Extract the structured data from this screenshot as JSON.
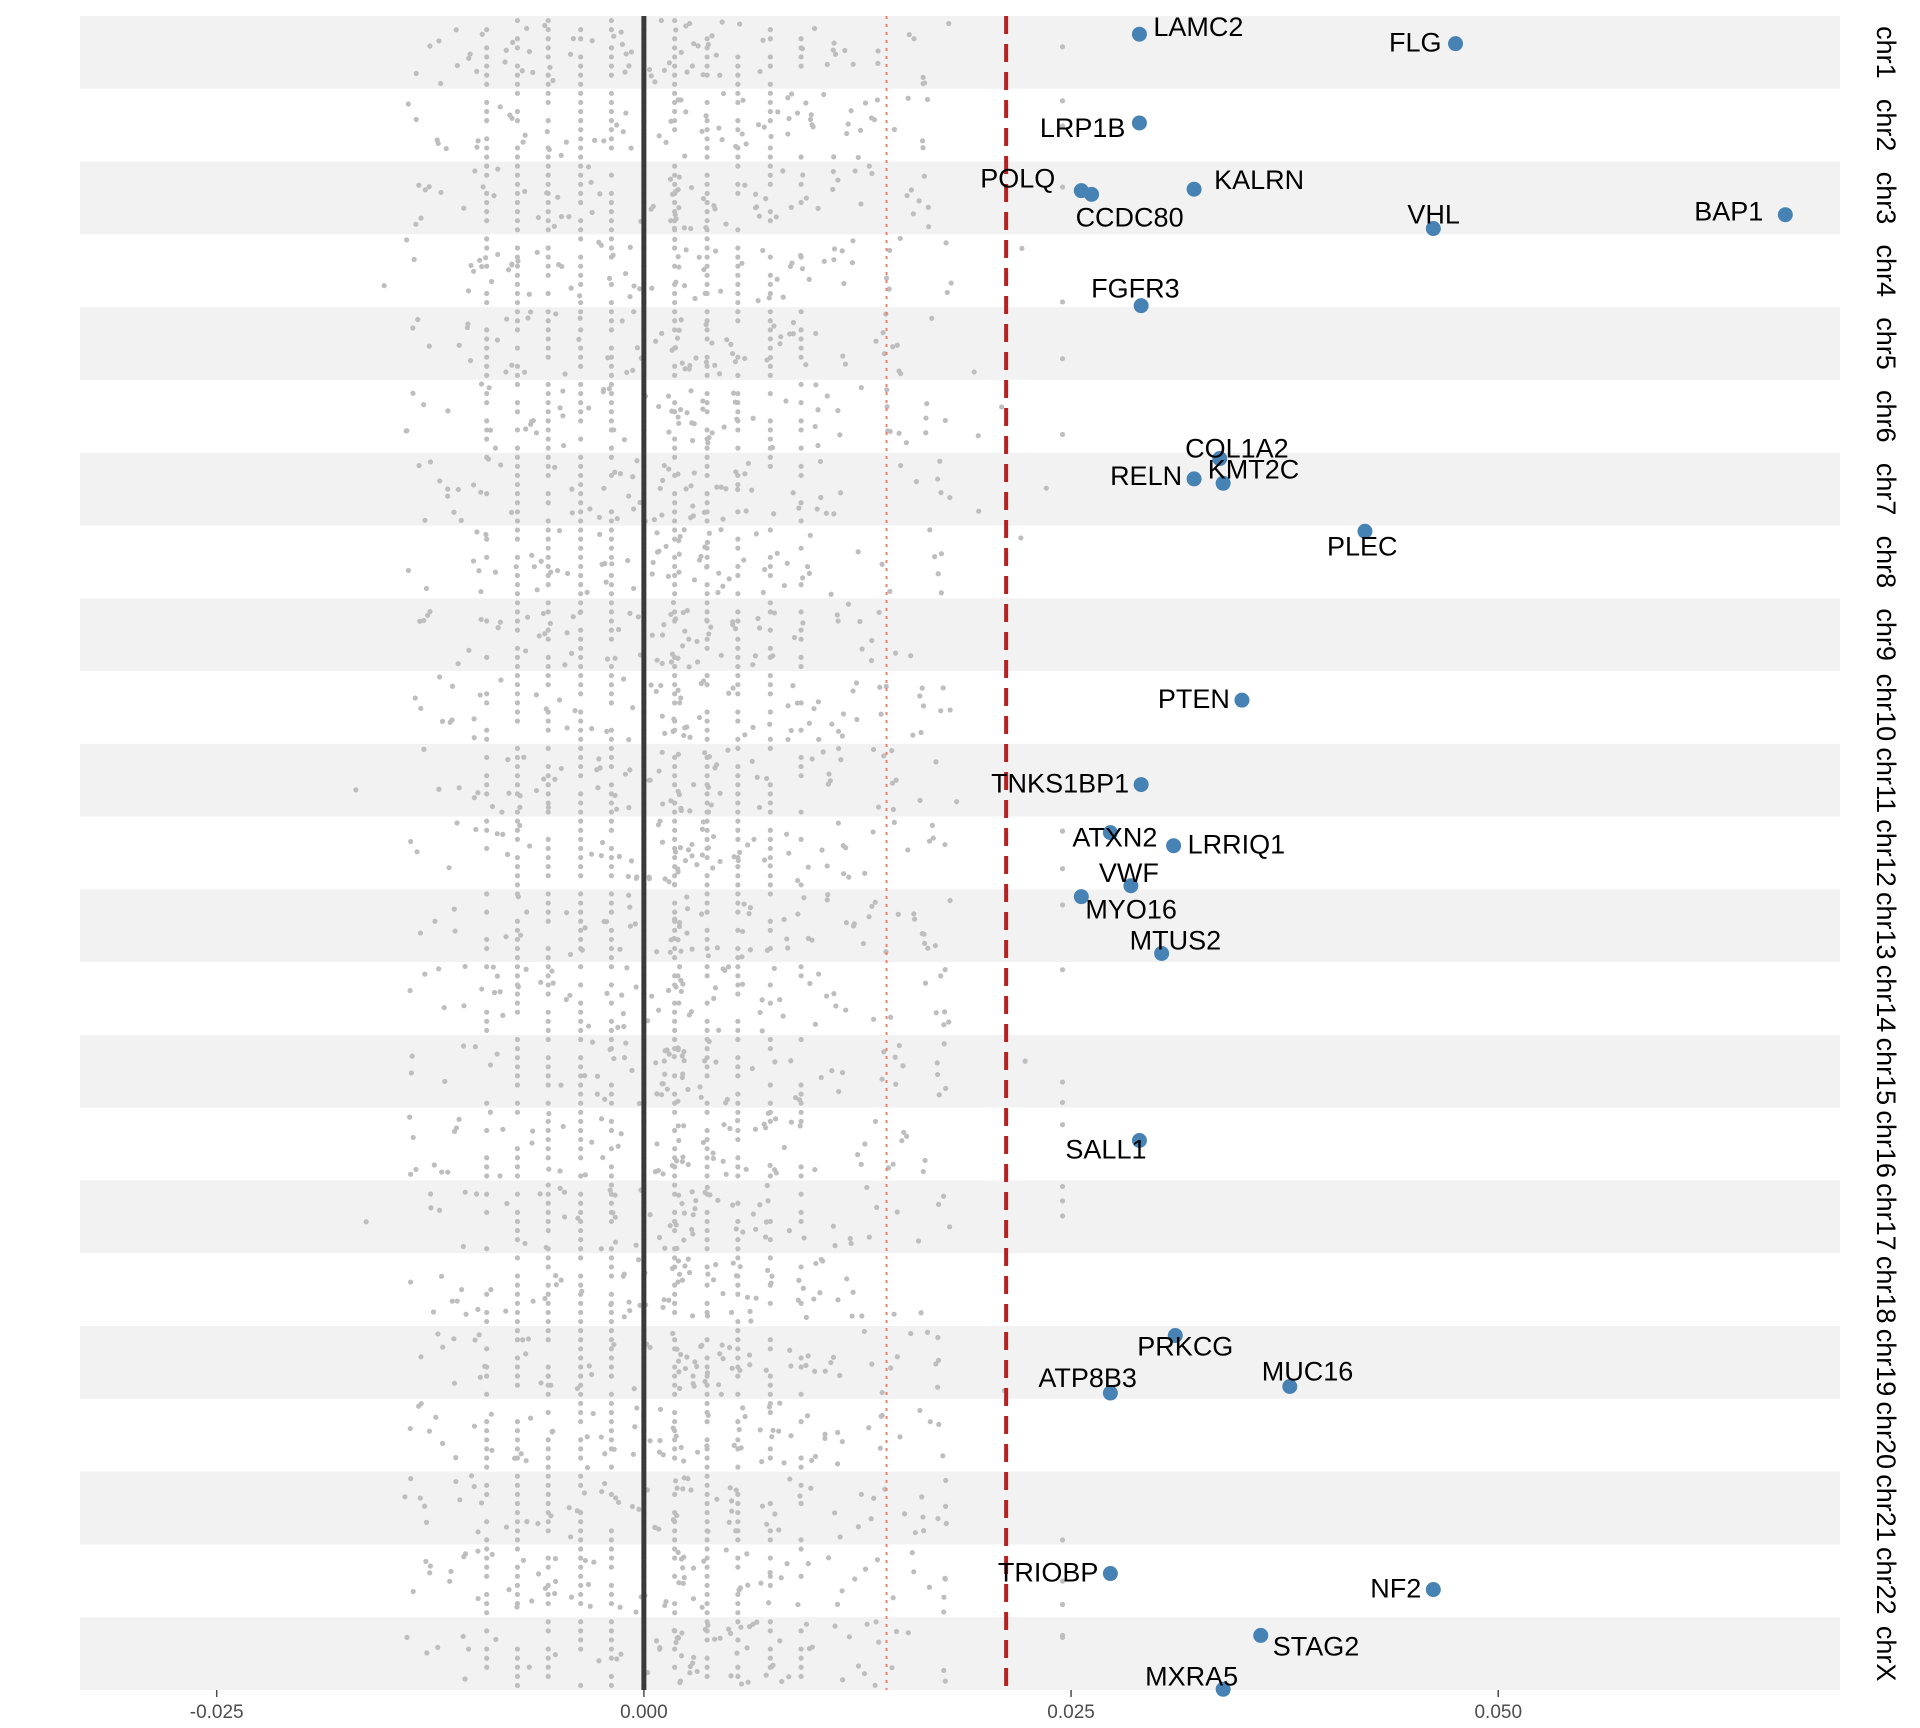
{
  "chart_data": {
    "type": "scatter",
    "title": "",
    "xlabel": "",
    "ylabel": "",
    "xlim": [
      -0.033,
      0.07
    ],
    "x_ticks": [
      -0.025,
      0.0,
      0.025,
      0.05
    ],
    "x_tick_labels": [
      "-0.025",
      "0.000",
      "0.025",
      "0.050"
    ],
    "categories": [
      "chr1",
      "chr2",
      "chr3",
      "chr4",
      "chr5",
      "chr6",
      "chr7",
      "chr8",
      "chr9",
      "chr10",
      "chr11",
      "chr12",
      "chr13",
      "chr14",
      "chr15",
      "chr16",
      "chr17",
      "chr18",
      "chr19",
      "chr20",
      "chr21",
      "chr22",
      "chrX"
    ],
    "category_axis": "right",
    "band_shading": "alternating",
    "reference_lines": [
      {
        "x": 0.0,
        "style": "solid",
        "color": "#3a3a3a"
      },
      {
        "x": 0.0142,
        "style": "dotted",
        "color": "#f08070"
      },
      {
        "x": 0.0212,
        "style": "dashed",
        "color": "#b22222"
      }
    ],
    "background_points": {
      "color": "#bebebe",
      "note": "several thousand non-significant genes, x mostly between -0.012 and 0.020, scattered across every chromosome band",
      "x_range": [
        -0.032,
        0.025
      ]
    },
    "highlight_color": "#4682b4",
    "highlighted_genes": [
      {
        "gene": "LAMC2",
        "chr": "chr1",
        "x": 0.029,
        "pos": 0.25
      },
      {
        "gene": "FLG",
        "chr": "chr1",
        "x": 0.0475,
        "pos": 0.38
      },
      {
        "gene": "LRP1B",
        "chr": "chr2",
        "x": 0.029,
        "pos": 0.47
      },
      {
        "gene": "POLQ",
        "chr": "chr3",
        "x": 0.0256,
        "pos": 0.4
      },
      {
        "gene": "CCDC80",
        "chr": "chr3",
        "x": 0.0262,
        "pos": 0.45
      },
      {
        "gene": "KALRN",
        "chr": "chr3",
        "x": 0.0322,
        "pos": 0.38
      },
      {
        "gene": "VHL",
        "chr": "chr3",
        "x": 0.0462,
        "pos": 0.92
      },
      {
        "gene": "BAP1",
        "chr": "chr3",
        "x": 0.0668,
        "pos": 0.73
      },
      {
        "gene": "FGFR3",
        "chr": "chr4",
        "x": 0.0291,
        "pos": 0.98
      },
      {
        "gene": "KMT2C",
        "chr": "chr7",
        "x": 0.0337,
        "pos": 0.08
      },
      {
        "gene": "RELN",
        "chr": "chr7",
        "x": 0.0322,
        "pos": 0.36
      },
      {
        "gene": "COL1A2",
        "chr": "chr7",
        "x": 0.0339,
        "pos": 0.42
      },
      {
        "gene": "PLEC",
        "chr": "chr8",
        "x": 0.0422,
        "pos": 0.08
      },
      {
        "gene": "PTEN",
        "chr": "chr10",
        "x": 0.035,
        "pos": 0.4
      },
      {
        "gene": "TNKS1BP1",
        "chr": "chr11",
        "x": 0.0291,
        "pos": 0.56
      },
      {
        "gene": "ATXN2",
        "chr": "chr12",
        "x": 0.0273,
        "pos": 0.22
      },
      {
        "gene": "LRRIQ1",
        "chr": "chr12",
        "x": 0.031,
        "pos": 0.4
      },
      {
        "gene": "VWF",
        "chr": "chr12",
        "x": 0.0285,
        "pos": 0.95
      },
      {
        "gene": "MYO16",
        "chr": "chr13",
        "x": 0.0256,
        "pos": 0.1
      },
      {
        "gene": "MTUS2",
        "chr": "chr13",
        "x": 0.0303,
        "pos": 0.88
      },
      {
        "gene": "SALL1",
        "chr": "chr16",
        "x": 0.029,
        "pos": 0.45
      },
      {
        "gene": "PRKCG",
        "chr": "chr19",
        "x": 0.0311,
        "pos": 0.13
      },
      {
        "gene": "MUC16",
        "chr": "chr19",
        "x": 0.0378,
        "pos": 0.83
      },
      {
        "gene": "ATP8B3",
        "chr": "chr19",
        "x": 0.0273,
        "pos": 0.92
      },
      {
        "gene": "TRIOBP",
        "chr": "chr22",
        "x": 0.0273,
        "pos": 0.4
      },
      {
        "gene": "NF2",
        "chr": "chr22",
        "x": 0.0462,
        "pos": 0.62
      },
      {
        "gene": "STAG2",
        "chr": "chrX",
        "x": 0.0361,
        "pos": 0.25
      },
      {
        "gene": "MXRA5",
        "chr": "chrX",
        "x": 0.0339,
        "pos": 0.99
      }
    ]
  }
}
